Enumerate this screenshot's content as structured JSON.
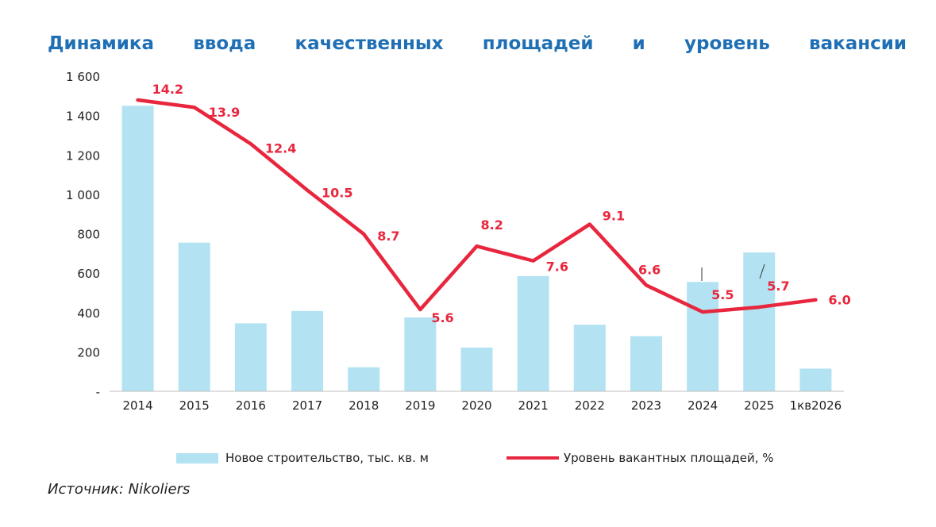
{
  "chart_data": {
    "type": "bar",
    "title": "Динамика ввода качественных площадей и уровень вакансии",
    "categories": [
      "2014",
      "2015",
      "2016",
      "2017",
      "2018",
      "2019",
      "2020",
      "2021",
      "2022",
      "2023",
      "2024",
      "2025",
      "1кв2026"
    ],
    "y_ticks": [
      "-",
      "200",
      "400",
      "600",
      "800",
      "1 000",
      "1 200",
      "1 400",
      "1 600"
    ],
    "ylim": [
      0,
      1600
    ],
    "grid": false,
    "legend_position": "bottom",
    "series": [
      {
        "name": "Новое строительство, тыс. кв. м",
        "type": "bar",
        "color": "#b3e3f2",
        "values": [
          1450,
          755,
          345,
          408,
          122,
          375,
          222,
          585,
          338,
          280,
          555,
          705,
          115
        ]
      },
      {
        "name": "Уровень вакантных площадей, %",
        "type": "line",
        "color": "#e8263d",
        "values": [
          14.2,
          13.9,
          12.4,
          10.5,
          8.7,
          5.6,
          8.2,
          7.6,
          9.1,
          6.6,
          5.5,
          5.7,
          6.0
        ],
        "labels": [
          "14.2",
          "13.9",
          "12.4",
          "10.5",
          "8.7",
          "5.6",
          "8.2",
          "7.6",
          "9.1",
          "6.6",
          "5.5",
          "5.7",
          "6.0"
        ]
      }
    ]
  },
  "source": "Источник: Nikoliers"
}
